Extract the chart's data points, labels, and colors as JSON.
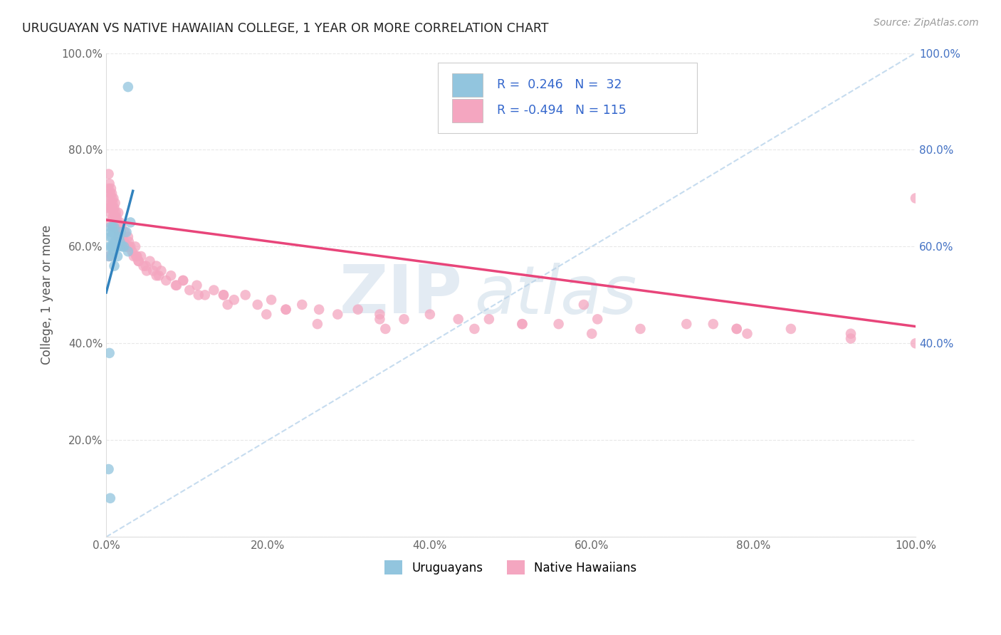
{
  "title": "URUGUAYAN VS NATIVE HAWAIIAN COLLEGE, 1 YEAR OR MORE CORRELATION CHART",
  "source": "Source: ZipAtlas.com",
  "ylabel": "College, 1 year or more",
  "xlim": [
    0.0,
    1.0
  ],
  "ylim": [
    0.0,
    1.0
  ],
  "legend_label1": "Uruguayans",
  "legend_label2": "Native Hawaiians",
  "r1": 0.246,
  "n1": 32,
  "r2": -0.494,
  "n2": 115,
  "color1": "#92c5de",
  "color2": "#f4a6c0",
  "trendline1_color": "#3182bd",
  "trendline2_color": "#e8457a",
  "diagonal_color": "#c6dcef",
  "watermark_zip": "ZIP",
  "watermark_atlas": "atlas",
  "uruguayan_x": [
    0.003,
    0.004,
    0.005,
    0.005,
    0.006,
    0.006,
    0.007,
    0.007,
    0.008,
    0.008,
    0.009,
    0.009,
    0.01,
    0.01,
    0.01,
    0.011,
    0.012,
    0.013,
    0.014,
    0.015,
    0.016,
    0.017,
    0.018,
    0.02,
    0.022,
    0.025,
    0.027,
    0.03,
    0.027,
    0.005,
    0.004,
    0.003
  ],
  "uruguayan_y": [
    0.58,
    0.6,
    0.62,
    0.64,
    0.6,
    0.63,
    0.58,
    0.62,
    0.6,
    0.64,
    0.59,
    0.63,
    0.56,
    0.6,
    0.64,
    0.61,
    0.6,
    0.62,
    0.58,
    0.6,
    0.62,
    0.61,
    0.63,
    0.6,
    0.6,
    0.63,
    0.59,
    0.65,
    0.93,
    0.08,
    0.38,
    0.14
  ],
  "native_hawaiian_x": [
    0.002,
    0.003,
    0.003,
    0.004,
    0.004,
    0.005,
    0.005,
    0.006,
    0.006,
    0.007,
    0.007,
    0.008,
    0.008,
    0.009,
    0.009,
    0.01,
    0.01,
    0.011,
    0.011,
    0.012,
    0.012,
    0.013,
    0.014,
    0.015,
    0.015,
    0.016,
    0.017,
    0.018,
    0.019,
    0.02,
    0.022,
    0.023,
    0.025,
    0.027,
    0.028,
    0.03,
    0.032,
    0.034,
    0.036,
    0.038,
    0.04,
    0.043,
    0.046,
    0.05,
    0.054,
    0.058,
    0.062,
    0.068,
    0.074,
    0.08,
    0.087,
    0.095,
    0.103,
    0.112,
    0.122,
    0.133,
    0.145,
    0.158,
    0.172,
    0.187,
    0.204,
    0.222,
    0.242,
    0.263,
    0.286,
    0.311,
    0.338,
    0.368,
    0.4,
    0.435,
    0.473,
    0.514,
    0.559,
    0.607,
    0.66,
    0.717,
    0.779,
    0.846,
    0.92,
    1.0,
    0.003,
    0.005,
    0.007,
    0.009,
    0.012,
    0.016,
    0.021,
    0.028,
    0.037,
    0.049,
    0.065,
    0.086,
    0.114,
    0.15,
    0.198,
    0.261,
    0.345,
    0.455,
    0.6,
    0.792,
    0.004,
    0.008,
    0.015,
    0.025,
    0.04,
    0.062,
    0.095,
    0.145,
    0.222,
    0.338,
    0.514,
    0.779,
    0.92,
    0.75,
    0.59,
    1.0
  ],
  "native_hawaiian_y": [
    0.68,
    0.72,
    0.75,
    0.7,
    0.73,
    0.67,
    0.71,
    0.69,
    0.72,
    0.68,
    0.71,
    0.66,
    0.69,
    0.67,
    0.7,
    0.65,
    0.68,
    0.66,
    0.69,
    0.64,
    0.67,
    0.66,
    0.65,
    0.64,
    0.67,
    0.63,
    0.65,
    0.63,
    0.64,
    0.62,
    0.61,
    0.63,
    0.6,
    0.62,
    0.61,
    0.6,
    0.59,
    0.58,
    0.6,
    0.58,
    0.57,
    0.58,
    0.56,
    0.55,
    0.57,
    0.55,
    0.54,
    0.55,
    0.53,
    0.54,
    0.52,
    0.53,
    0.51,
    0.52,
    0.5,
    0.51,
    0.5,
    0.49,
    0.5,
    0.48,
    0.49,
    0.47,
    0.48,
    0.47,
    0.46,
    0.47,
    0.46,
    0.45,
    0.46,
    0.45,
    0.45,
    0.44,
    0.44,
    0.45,
    0.43,
    0.44,
    0.43,
    0.43,
    0.42,
    0.4,
    0.65,
    0.68,
    0.7,
    0.64,
    0.66,
    0.63,
    0.61,
    0.6,
    0.58,
    0.56,
    0.54,
    0.52,
    0.5,
    0.48,
    0.46,
    0.44,
    0.43,
    0.43,
    0.42,
    0.42,
    0.58,
    0.68,
    0.62,
    0.6,
    0.57,
    0.56,
    0.53,
    0.5,
    0.47,
    0.45,
    0.44,
    0.43,
    0.41,
    0.44,
    0.48,
    0.7
  ],
  "uru_trend_x": [
    0.0,
    0.033
  ],
  "uru_trend_y_start": 0.505,
  "uru_trend_y_end": 0.715,
  "nh_trend_x": [
    0.0,
    1.0
  ],
  "nh_trend_y_start": 0.655,
  "nh_trend_y_end": 0.435
}
